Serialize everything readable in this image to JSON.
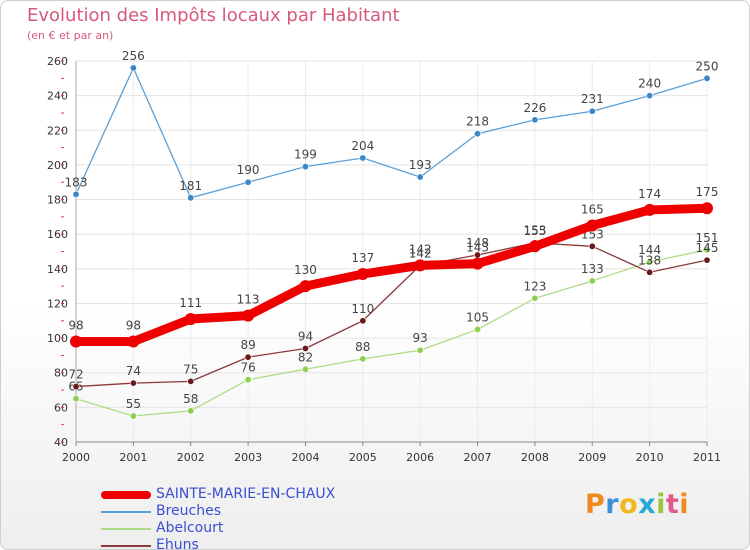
{
  "header": {
    "title": "Evolution des Impôts locaux par Habitant",
    "subtitle": "(en € et par an)"
  },
  "logo": {
    "letters": [
      "P",
      "r",
      "o",
      "x",
      "i",
      "t",
      "i"
    ],
    "colors": [
      "#f08a1e",
      "#3a8fd8",
      "#f0b81e",
      "#2aa8d8",
      "#9bc53d",
      "#e05a8a",
      "#f08a1e"
    ]
  },
  "chart_data": {
    "type": "line",
    "title": "Evolution des Impôts locaux par Habitant",
    "subtitle": "(en € et par an)",
    "xlabel": "",
    "ylabel": "",
    "x": [
      "2000",
      "2001",
      "2002",
      "2003",
      "2004",
      "2005",
      "2006",
      "2007",
      "2008",
      "2009",
      "2010",
      "2011"
    ],
    "ylim": [
      40,
      260
    ],
    "yticks": [
      40,
      60,
      80,
      100,
      120,
      140,
      160,
      180,
      200,
      220,
      240,
      260
    ],
    "grid": "horizontal",
    "legend": "bottom-left",
    "series": [
      {
        "name": "Breuches",
        "values": [
          183,
          256,
          181,
          190,
          199,
          204,
          193,
          218,
          226,
          231,
          240,
          250
        ],
        "labels": [
          "183",
          "256",
          "181",
          "190",
          "199",
          "204",
          "193",
          "218",
          "226",
          "231",
          "240",
          "250"
        ],
        "color": "#5aa0d8",
        "marker": "#3a86c8",
        "bold": false
      },
      {
        "name": "Abelcourt",
        "values": [
          65,
          55,
          58,
          76,
          82,
          88,
          93,
          105,
          123,
          133,
          144,
          151
        ],
        "labels": [
          "65",
          "55",
          "58",
          "76",
          "82",
          "88",
          "93",
          "105",
          "123",
          "133",
          "144",
          "151"
        ],
        "color": "#aedc86",
        "marker": "#8cd050",
        "bold": false
      },
      {
        "name": "Ehuns",
        "values": [
          72,
          74,
          75,
          89,
          94,
          110,
          142,
          148,
          155,
          153,
          138,
          145
        ],
        "labels": [
          "72",
          "74",
          "75",
          "89",
          "94",
          "110",
          "142",
          "148",
          "155",
          "153",
          "138",
          "145"
        ],
        "color": "#8a3a3a",
        "marker": "#6a1a1a",
        "bold": false
      },
      {
        "name": "SAINTE-MARIE-EN-CHAUX",
        "values": [
          98,
          98,
          111,
          113,
          130,
          137,
          142,
          143,
          153,
          165,
          174,
          175
        ],
        "labels": [
          "98",
          "98",
          "111",
          "113",
          "130",
          "137",
          "142",
          "143",
          "153",
          "165",
          "174",
          "175"
        ],
        "color": "#ee0000",
        "marker": "#ee0000",
        "bold": true
      }
    ],
    "legend_entries": [
      {
        "name": "SAINTE-MARIE-EN-CHAUX",
        "color": "#ee0000",
        "bold": true
      },
      {
        "name": "Breuches",
        "color": "#5aa0d8",
        "bold": false
      },
      {
        "name": "Abelcourt",
        "color": "#aedc86",
        "bold": false
      },
      {
        "name": "Ehuns",
        "color": "#8a3a3a",
        "bold": false
      }
    ]
  }
}
